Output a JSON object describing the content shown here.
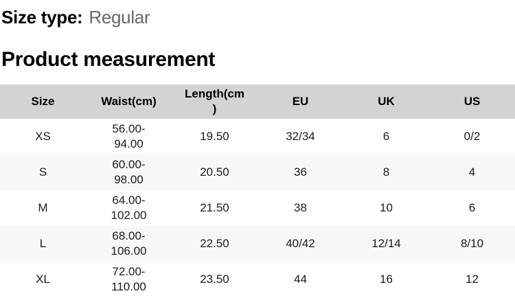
{
  "header": {
    "size_type_label": "Size type:",
    "size_type_value": "Regular",
    "section_title": "Product measurement"
  },
  "table": {
    "headers": [
      "Size",
      "Waist(cm)",
      "Length(cm\n)",
      "EU",
      "UK",
      "US"
    ],
    "rows": [
      {
        "size": "XS",
        "waist": "56.00-\n94.00",
        "length": "19.50",
        "eu": "32/34",
        "uk": "6",
        "us": "0/2"
      },
      {
        "size": "S",
        "waist": "60.00-\n98.00",
        "length": "20.50",
        "eu": "36",
        "uk": "8",
        "us": "4"
      },
      {
        "size": "M",
        "waist": "64.00-\n102.00",
        "length": "21.50",
        "eu": "38",
        "uk": "10",
        "us": "6"
      },
      {
        "size": "L",
        "waist": "68.00-\n106.00",
        "length": "22.50",
        "eu": "40/42",
        "uk": "12/14",
        "us": "8/10"
      },
      {
        "size": "XL",
        "waist": "72.00-\n110.00",
        "length": "23.50",
        "eu": "44",
        "uk": "16",
        "us": "12"
      }
    ]
  },
  "colors": {
    "header_row_bg": "#d3d3d3",
    "stripe_row_bg": "#f7f7f7",
    "page_bg": "#ffffff",
    "heading_text": "#000000",
    "muted_text": "#666666",
    "body_text": "#1a1a1a"
  }
}
